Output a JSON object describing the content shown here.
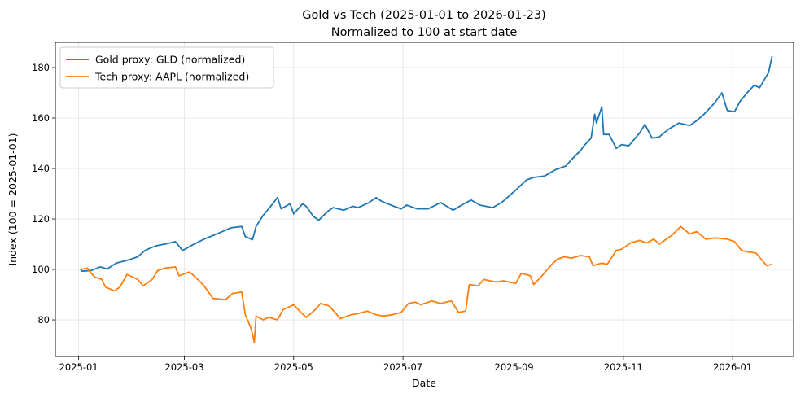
{
  "chart_data": {
    "type": "line",
    "title": "Gold vs Tech (2025-01-01 to 2026-01-23)",
    "subtitle": "Normalized to 100 at start date",
    "xlabel": "Date",
    "ylabel": "Index (100 = 2025-01-01)",
    "x_range": [
      "2024-12-19",
      "2026-02-04"
    ],
    "ylim": [
      65.5,
      190
    ],
    "x_ticks": [
      "2025-01",
      "2025-03",
      "2025-05",
      "2025-07",
      "2025-09",
      "2025-11",
      "2026-01"
    ],
    "y_ticks": [
      80,
      100,
      120,
      140,
      160,
      180
    ],
    "grid": true,
    "legend_position": "upper-left",
    "colors": {
      "gold": "#1f77b4",
      "tech": "#ff7f0e"
    },
    "series": [
      {
        "name": "Gold proxy: GLD (normalized)",
        "color": "#1f77b4",
        "points": [
          [
            "2025-01-02",
            100
          ],
          [
            "2025-01-03",
            99.3
          ],
          [
            "2025-01-08",
            99.6
          ],
          [
            "2025-01-13",
            101
          ],
          [
            "2025-01-17",
            100.2
          ],
          [
            "2025-01-22",
            102.5
          ],
          [
            "2025-01-29",
            103.8
          ],
          [
            "2025-02-03",
            105
          ],
          [
            "2025-02-07",
            107.5
          ],
          [
            "2025-02-11",
            108.8
          ],
          [
            "2025-02-14",
            109.5
          ],
          [
            "2025-02-18",
            110
          ],
          [
            "2025-02-24",
            111
          ],
          [
            "2025-02-28",
            107.5
          ],
          [
            "2025-03-05",
            109.5
          ],
          [
            "2025-03-12",
            112
          ],
          [
            "2025-03-19",
            114
          ],
          [
            "2025-03-27",
            116.5
          ],
          [
            "2025-04-02",
            117
          ],
          [
            "2025-04-04",
            113
          ],
          [
            "2025-04-08",
            111.8
          ],
          [
            "2025-04-10",
            117
          ],
          [
            "2025-04-14",
            121.5
          ],
          [
            "2025-04-17",
            124
          ],
          [
            "2025-04-22",
            128.5
          ],
          [
            "2025-04-24",
            124
          ],
          [
            "2025-04-29",
            126
          ],
          [
            "2025-05-01",
            122
          ],
          [
            "2025-05-06",
            126
          ],
          [
            "2025-05-08",
            125
          ],
          [
            "2025-05-12",
            121
          ],
          [
            "2025-05-15",
            119.5
          ],
          [
            "2025-05-20",
            123
          ],
          [
            "2025-05-23",
            124.5
          ],
          [
            "2025-05-29",
            123.5
          ],
          [
            "2025-06-03",
            125
          ],
          [
            "2025-06-06",
            124.5
          ],
          [
            "2025-06-12",
            126.5
          ],
          [
            "2025-06-16",
            128.5
          ],
          [
            "2025-06-19",
            127
          ],
          [
            "2025-06-26",
            125
          ],
          [
            "2025-06-30",
            124
          ],
          [
            "2025-07-03",
            125.5
          ],
          [
            "2025-07-09",
            124
          ],
          [
            "2025-07-15",
            124
          ],
          [
            "2025-07-22",
            126.5
          ],
          [
            "2025-07-29",
            123.5
          ],
          [
            "2025-08-04",
            126
          ],
          [
            "2025-08-08",
            127.5
          ],
          [
            "2025-08-13",
            125.5
          ],
          [
            "2025-08-20",
            124.5
          ],
          [
            "2025-08-25",
            126.5
          ],
          [
            "2025-09-02",
            131.5
          ],
          [
            "2025-09-08",
            135.5
          ],
          [
            "2025-09-12",
            136.5
          ],
          [
            "2025-09-18",
            137
          ],
          [
            "2025-09-24",
            139.5
          ],
          [
            "2025-09-30",
            141
          ],
          [
            "2025-10-03",
            143.5
          ],
          [
            "2025-10-08",
            147
          ],
          [
            "2025-10-10",
            149
          ],
          [
            "2025-10-14",
            152
          ],
          [
            "2025-10-16",
            161.5
          ],
          [
            "2025-10-17",
            158
          ],
          [
            "2025-10-20",
            164.5
          ],
          [
            "2025-10-21",
            153.5
          ],
          [
            "2025-10-24",
            153.5
          ],
          [
            "2025-10-28",
            148
          ],
          [
            "2025-10-31",
            149.5
          ],
          [
            "2025-11-04",
            149
          ],
          [
            "2025-11-10",
            154
          ],
          [
            "2025-11-13",
            157.5
          ],
          [
            "2025-11-17",
            152
          ],
          [
            "2025-11-21",
            152.5
          ],
          [
            "2025-11-26",
            155.5
          ],
          [
            "2025-12-02",
            158
          ],
          [
            "2025-12-08",
            157
          ],
          [
            "2025-12-12",
            159
          ],
          [
            "2025-12-16",
            161.5
          ],
          [
            "2025-12-22",
            166
          ],
          [
            "2025-12-26",
            170
          ],
          [
            "2025-12-29",
            163
          ],
          [
            "2026-01-02",
            162.5
          ],
          [
            "2026-01-05",
            166.5
          ],
          [
            "2026-01-09",
            170
          ],
          [
            "2026-01-13",
            173
          ],
          [
            "2026-01-16",
            172
          ],
          [
            "2026-01-21",
            178
          ],
          [
            "2026-01-23",
            184.5
          ]
        ]
      },
      {
        "name": "Tech proxy: AAPL (normalized)",
        "color": "#ff7f0e",
        "points": [
          [
            "2025-01-02",
            100
          ],
          [
            "2025-01-06",
            100.5
          ],
          [
            "2025-01-08",
            98.5
          ],
          [
            "2025-01-10",
            97
          ],
          [
            "2025-01-14",
            96
          ],
          [
            "2025-01-16",
            93
          ],
          [
            "2025-01-21",
            91.5
          ],
          [
            "2025-01-24",
            93
          ],
          [
            "2025-01-28",
            98
          ],
          [
            "2025-02-03",
            96
          ],
          [
            "2025-02-06",
            93.5
          ],
          [
            "2025-02-11",
            96
          ],
          [
            "2025-02-14",
            99.5
          ],
          [
            "2025-02-18",
            100.5
          ],
          [
            "2025-02-24",
            101
          ],
          [
            "2025-02-26",
            97.5
          ],
          [
            "2025-03-04",
            99
          ],
          [
            "2025-03-10",
            95
          ],
          [
            "2025-03-12",
            93.5
          ],
          [
            "2025-03-17",
            88.5
          ],
          [
            "2025-03-24",
            88
          ],
          [
            "2025-03-28",
            90.5
          ],
          [
            "2025-04-02",
            91
          ],
          [
            "2025-04-04",
            82
          ],
          [
            "2025-04-07",
            77
          ],
          [
            "2025-04-08",
            74.5
          ],
          [
            "2025-04-09",
            71
          ],
          [
            "2025-04-10",
            81.5
          ],
          [
            "2025-04-14",
            80
          ],
          [
            "2025-04-17",
            81
          ],
          [
            "2025-04-22",
            80
          ],
          [
            "2025-04-25",
            84
          ],
          [
            "2025-05-01",
            86
          ],
          [
            "2025-05-05",
            83
          ],
          [
            "2025-05-08",
            81
          ],
          [
            "2025-05-13",
            84
          ],
          [
            "2025-05-16",
            86.5
          ],
          [
            "2025-05-21",
            85.5
          ],
          [
            "2025-05-27",
            80.5
          ],
          [
            "2025-06-02",
            82
          ],
          [
            "2025-06-06",
            82.5
          ],
          [
            "2025-06-11",
            83.5
          ],
          [
            "2025-06-16",
            82
          ],
          [
            "2025-06-20",
            81.5
          ],
          [
            "2025-06-25",
            82
          ],
          [
            "2025-06-30",
            83
          ],
          [
            "2025-07-04",
            86.5
          ],
          [
            "2025-07-08",
            87
          ],
          [
            "2025-07-11",
            86
          ],
          [
            "2025-07-17",
            87.5
          ],
          [
            "2025-07-22",
            86.5
          ],
          [
            "2025-07-28",
            87.5
          ],
          [
            "2025-08-01",
            83
          ],
          [
            "2025-08-05",
            83.5
          ],
          [
            "2025-08-07",
            94
          ],
          [
            "2025-08-12",
            93.5
          ],
          [
            "2025-08-15",
            96
          ],
          [
            "2025-08-22",
            95
          ],
          [
            "2025-08-26",
            95.5
          ],
          [
            "2025-09-02",
            94.5
          ],
          [
            "2025-09-05",
            98.5
          ],
          [
            "2025-09-10",
            97.5
          ],
          [
            "2025-09-12",
            94
          ],
          [
            "2025-09-16",
            97
          ],
          [
            "2025-09-22",
            102
          ],
          [
            "2025-09-25",
            104
          ],
          [
            "2025-09-29",
            105
          ],
          [
            "2025-10-03",
            104.5
          ],
          [
            "2025-10-08",
            105.5
          ],
          [
            "2025-10-13",
            105
          ],
          [
            "2025-10-15",
            101.5
          ],
          [
            "2025-10-20",
            102.5
          ],
          [
            "2025-10-23",
            102
          ],
          [
            "2025-10-28",
            107.5
          ],
          [
            "2025-10-31",
            108
          ],
          [
            "2025-11-05",
            110.5
          ],
          [
            "2025-11-10",
            111.5
          ],
          [
            "2025-11-14",
            110.5
          ],
          [
            "2025-11-18",
            112
          ],
          [
            "2025-11-21",
            110
          ],
          [
            "2025-11-24",
            111.5
          ],
          [
            "2025-11-28",
            113.5
          ],
          [
            "2025-12-03",
            117
          ],
          [
            "2025-12-08",
            114
          ],
          [
            "2025-12-12",
            115
          ],
          [
            "2025-12-17",
            112
          ],
          [
            "2025-12-22",
            112.5
          ],
          [
            "2025-12-29",
            112
          ],
          [
            "2026-01-02",
            111
          ],
          [
            "2026-01-06",
            107.5
          ],
          [
            "2026-01-09",
            107
          ],
          [
            "2026-01-14",
            106.5
          ],
          [
            "2026-01-20",
            101.5
          ],
          [
            "2026-01-23",
            102
          ]
        ]
      }
    ]
  }
}
